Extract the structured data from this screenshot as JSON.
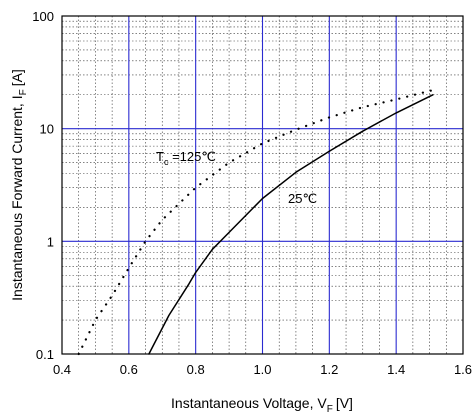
{
  "chart_data": {
    "type": "line",
    "xlabel": "Instantaneous Voltage, V",
    "xlabel_sub": "F",
    "xlabel_unit": "[V]",
    "ylabel": "Instantaneous Forward Current, I",
    "ylabel_sub": "F",
    "ylabel_unit": "[A]",
    "xlim": [
      0.4,
      1.6
    ],
    "ylim": [
      0.1,
      100
    ],
    "y_scale": "log",
    "x_ticks": [
      "0.4",
      "0.6",
      "0.8",
      "1.0",
      "1.2",
      "1.4",
      "1.6"
    ],
    "y_ticks": [
      "0.1",
      "1",
      "10",
      "100"
    ],
    "grid": true,
    "colors": {
      "major_grid": "#2b2bd0",
      "minor_grid": "#3a3a3a",
      "series": "#000000"
    },
    "series": [
      {
        "name": "25℃",
        "style": "solid",
        "x": [
          0.66,
          0.72,
          0.78,
          0.8,
          0.85,
          0.9,
          1.0,
          1.1,
          1.2,
          1.3,
          1.4,
          1.51
        ],
        "y": [
          0.1,
          0.22,
          0.42,
          0.53,
          0.85,
          1.2,
          2.4,
          4.1,
          6.3,
          9.5,
          13.8,
          20
        ]
      },
      {
        "name": "T",
        "name_sub": "c",
        "name_suffix": " =125℃",
        "style": "dotted",
        "x": [
          0.45,
          0.5,
          0.55,
          0.6,
          0.65,
          0.7,
          0.8,
          0.9,
          1.0,
          1.1,
          1.2,
          1.3,
          1.4,
          1.51
        ],
        "y": [
          0.1,
          0.2,
          0.33,
          0.58,
          1.0,
          1.55,
          3.0,
          5.0,
          7.4,
          9.8,
          12.6,
          15.5,
          18.2,
          22
        ]
      }
    ]
  }
}
